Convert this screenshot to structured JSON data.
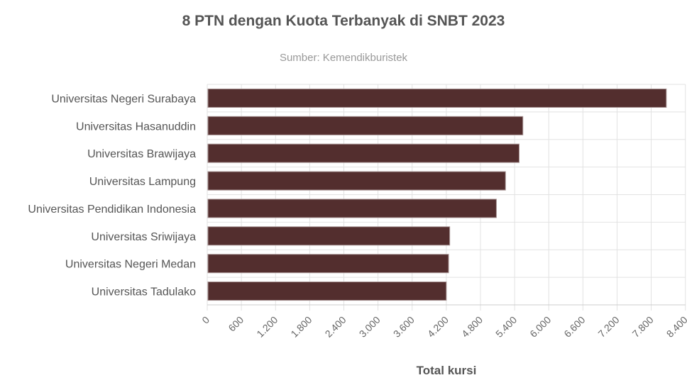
{
  "chart_data": {
    "type": "bar",
    "orientation": "horizontal",
    "title": "8 PTN dengan Kuota Terbanyak di SNBT 2023",
    "subtitle": "Sumber: Kemendikburistek",
    "xlabel": "Total kursi",
    "ylabel": "",
    "categories": [
      "Universitas Negeri Surabaya",
      "Universitas Hasanuddin",
      "Universitas Brawijaya",
      "Universitas Lampung",
      "Universitas Pendidikan Indonesia",
      "Universitas Sriwijaya",
      "Universitas Negeri Medan",
      "Universitas Tadulako"
    ],
    "values": [
      8065,
      5545,
      5480,
      5240,
      5080,
      4260,
      4240,
      4200
    ],
    "xlim": [
      0,
      8400
    ],
    "x_ticks": [
      "0",
      "600",
      "1.200",
      "1.800",
      "2.400",
      "3.000",
      "3.600",
      "4.200",
      "4.800",
      "5.400",
      "6.000",
      "6.600",
      "7.200",
      "7.800",
      "8.400"
    ],
    "grid": true,
    "legend": "none",
    "bar_color": "#532e2e"
  }
}
